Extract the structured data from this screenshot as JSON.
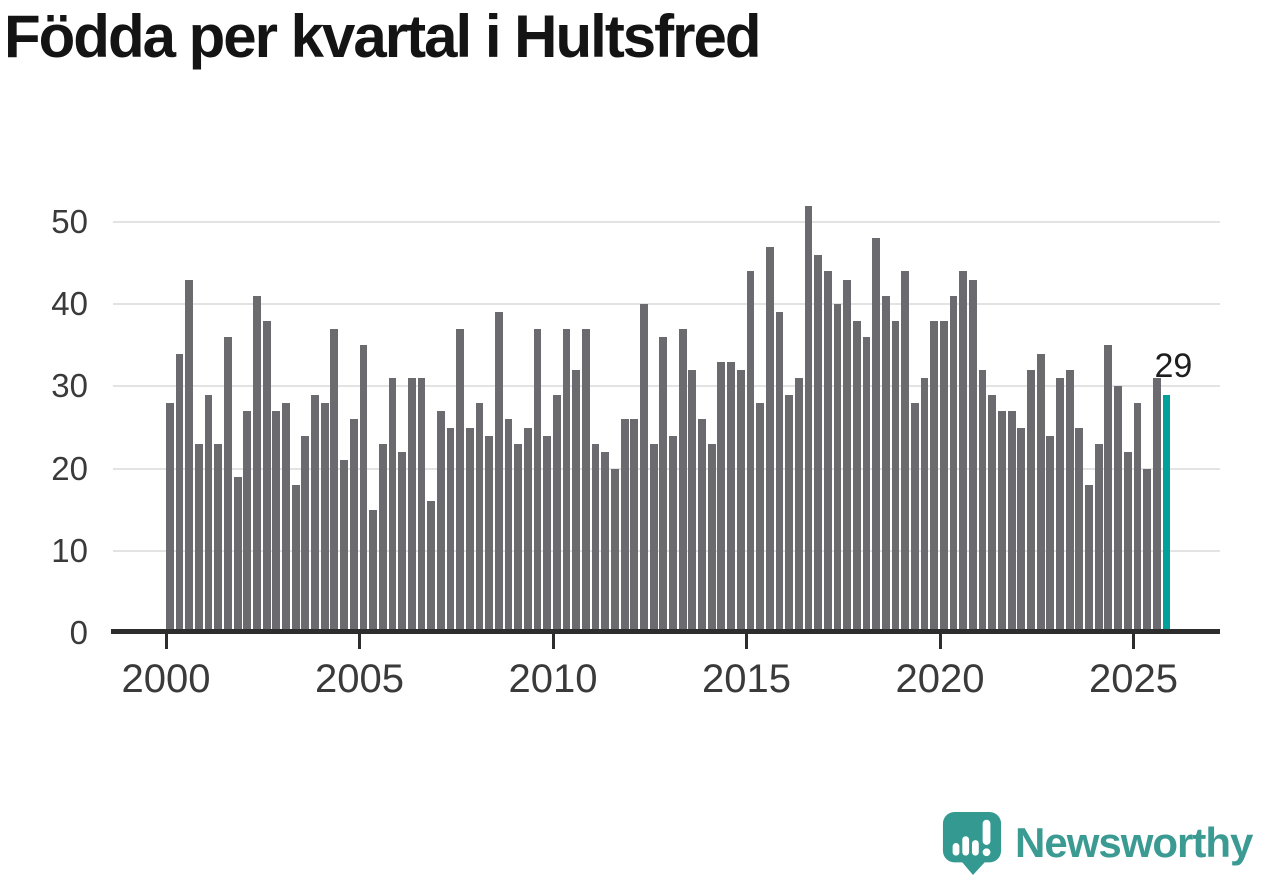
{
  "chart_data": {
    "type": "bar",
    "title": "Födda per kvartal i Hultsfred",
    "xlabel": "",
    "ylabel": "",
    "x_tick_labels": [
      "2000",
      "2005",
      "2010",
      "2015",
      "2020",
      "2025"
    ],
    "y_tick_labels": [
      "0",
      "10",
      "20",
      "30",
      "40",
      "50"
    ],
    "y_ticks": [
      0,
      10,
      20,
      30,
      40,
      50
    ],
    "ylim": [
      0,
      52
    ],
    "grid": "horizontal",
    "legend_position": "none",
    "bar_color": "#6b6b6f",
    "highlight_color": "#00a19a",
    "highlight_index": 103,
    "highlight_label": "29",
    "categories": [
      "2000 Q1",
      "2000 Q2",
      "2000 Q3",
      "2000 Q4",
      "2001 Q1",
      "2001 Q2",
      "2001 Q3",
      "2001 Q4",
      "2002 Q1",
      "2002 Q2",
      "2002 Q3",
      "2002 Q4",
      "2003 Q1",
      "2003 Q2",
      "2003 Q3",
      "2003 Q4",
      "2004 Q1",
      "2004 Q2",
      "2004 Q3",
      "2004 Q4",
      "2005 Q1",
      "2005 Q2",
      "2005 Q3",
      "2005 Q4",
      "2006 Q1",
      "2006 Q2",
      "2006 Q3",
      "2006 Q4",
      "2007 Q1",
      "2007 Q2",
      "2007 Q3",
      "2007 Q4",
      "2008 Q1",
      "2008 Q2",
      "2008 Q3",
      "2008 Q4",
      "2009 Q1",
      "2009 Q2",
      "2009 Q3",
      "2009 Q4",
      "2010 Q1",
      "2010 Q2",
      "2010 Q3",
      "2010 Q4",
      "2011 Q1",
      "2011 Q2",
      "2011 Q3",
      "2011 Q4",
      "2012 Q1",
      "2012 Q2",
      "2012 Q3",
      "2012 Q4",
      "2013 Q1",
      "2013 Q2",
      "2013 Q3",
      "2013 Q4",
      "2014 Q1",
      "2014 Q2",
      "2014 Q3",
      "2014 Q4",
      "2015 Q1",
      "2015 Q2",
      "2015 Q3",
      "2015 Q4",
      "2016 Q1",
      "2016 Q2",
      "2016 Q3",
      "2016 Q4",
      "2017 Q1",
      "2017 Q2",
      "2017 Q3",
      "2017 Q4",
      "2018 Q1",
      "2018 Q2",
      "2018 Q3",
      "2018 Q4",
      "2019 Q1",
      "2019 Q2",
      "2019 Q3",
      "2019 Q4",
      "2020 Q1",
      "2020 Q2",
      "2020 Q3",
      "2020 Q4",
      "2021 Q1",
      "2021 Q2",
      "2021 Q3",
      "2021 Q4",
      "2022 Q1",
      "2022 Q2",
      "2022 Q3",
      "2022 Q4",
      "2023 Q1",
      "2023 Q2",
      "2023 Q3",
      "2023 Q4",
      "2024 Q1",
      "2024 Q2",
      "2024 Q3",
      "2024 Q4",
      "2025 Q1",
      "2025 Q2",
      "2025 Q3",
      "2025 Q4"
    ],
    "values": [
      28,
      34,
      43,
      23,
      29,
      23,
      36,
      19,
      27,
      41,
      38,
      27,
      28,
      18,
      24,
      29,
      28,
      37,
      21,
      26,
      35,
      15,
      23,
      31,
      22,
      31,
      31,
      16,
      27,
      25,
      37,
      25,
      28,
      24,
      39,
      26,
      23,
      25,
      37,
      24,
      29,
      37,
      32,
      37,
      23,
      22,
      20,
      26,
      26,
      40,
      23,
      36,
      24,
      37,
      32,
      26,
      23,
      33,
      33,
      32,
      44,
      28,
      47,
      39,
      29,
      31,
      52,
      46,
      44,
      40,
      43,
      38,
      36,
      48,
      41,
      38,
      44,
      28,
      31,
      38,
      38,
      41,
      44,
      43,
      32,
      29,
      27,
      27,
      25,
      32,
      34,
      24,
      31,
      32,
      25,
      18,
      23,
      35,
      30,
      22,
      28,
      20,
      31,
      29
    ]
  },
  "logo": {
    "text": "Newsworthy",
    "icon": "speech-bubble-bar-chart-icon",
    "color": "#3b9b93",
    "icon_color": "#349a91"
  }
}
